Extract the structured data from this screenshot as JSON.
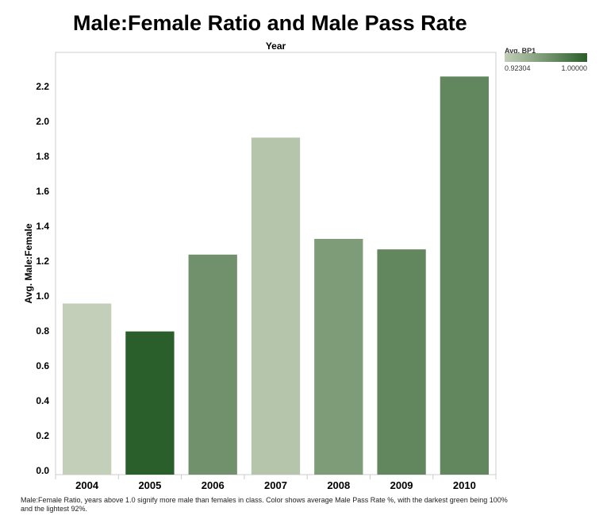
{
  "chart_data": {
    "type": "bar",
    "title": "Male:Female Ratio and Male Pass Rate",
    "column_header": "Year",
    "ylabel": "Avg. Male:Female",
    "xlabel": "",
    "categories": [
      "2004",
      "2005",
      "2006",
      "2007",
      "2008",
      "2009",
      "2010"
    ],
    "values": [
      0.98,
      0.82,
      1.26,
      1.93,
      1.35,
      1.29,
      2.28
    ],
    "color_values": [
      0.923,
      1.0,
      0.965,
      0.93,
      0.958,
      0.972,
      0.972
    ],
    "ylim": [
      0,
      2.3
    ],
    "yticks": [
      "0.0",
      "0.2",
      "0.4",
      "0.6",
      "0.8",
      "1.0",
      "1.2",
      "1.4",
      "1.6",
      "1.8",
      "2.0",
      "2.2"
    ],
    "grid": false,
    "legend": {
      "title": "Avg. BP1",
      "min_label": "0.92304",
      "max_label": "1.00000",
      "min": 0.92304,
      "max": 1.0,
      "min_color": "#c3cfb8",
      "max_color": "#2a5e2a",
      "placement": "top-right"
    },
    "caption": "Male:Female Ratio, years above 1.0 signify more male than females in class.  Color shows average Male Pass Rate %, with the darkest green being 100% and the lightest 92%."
  }
}
